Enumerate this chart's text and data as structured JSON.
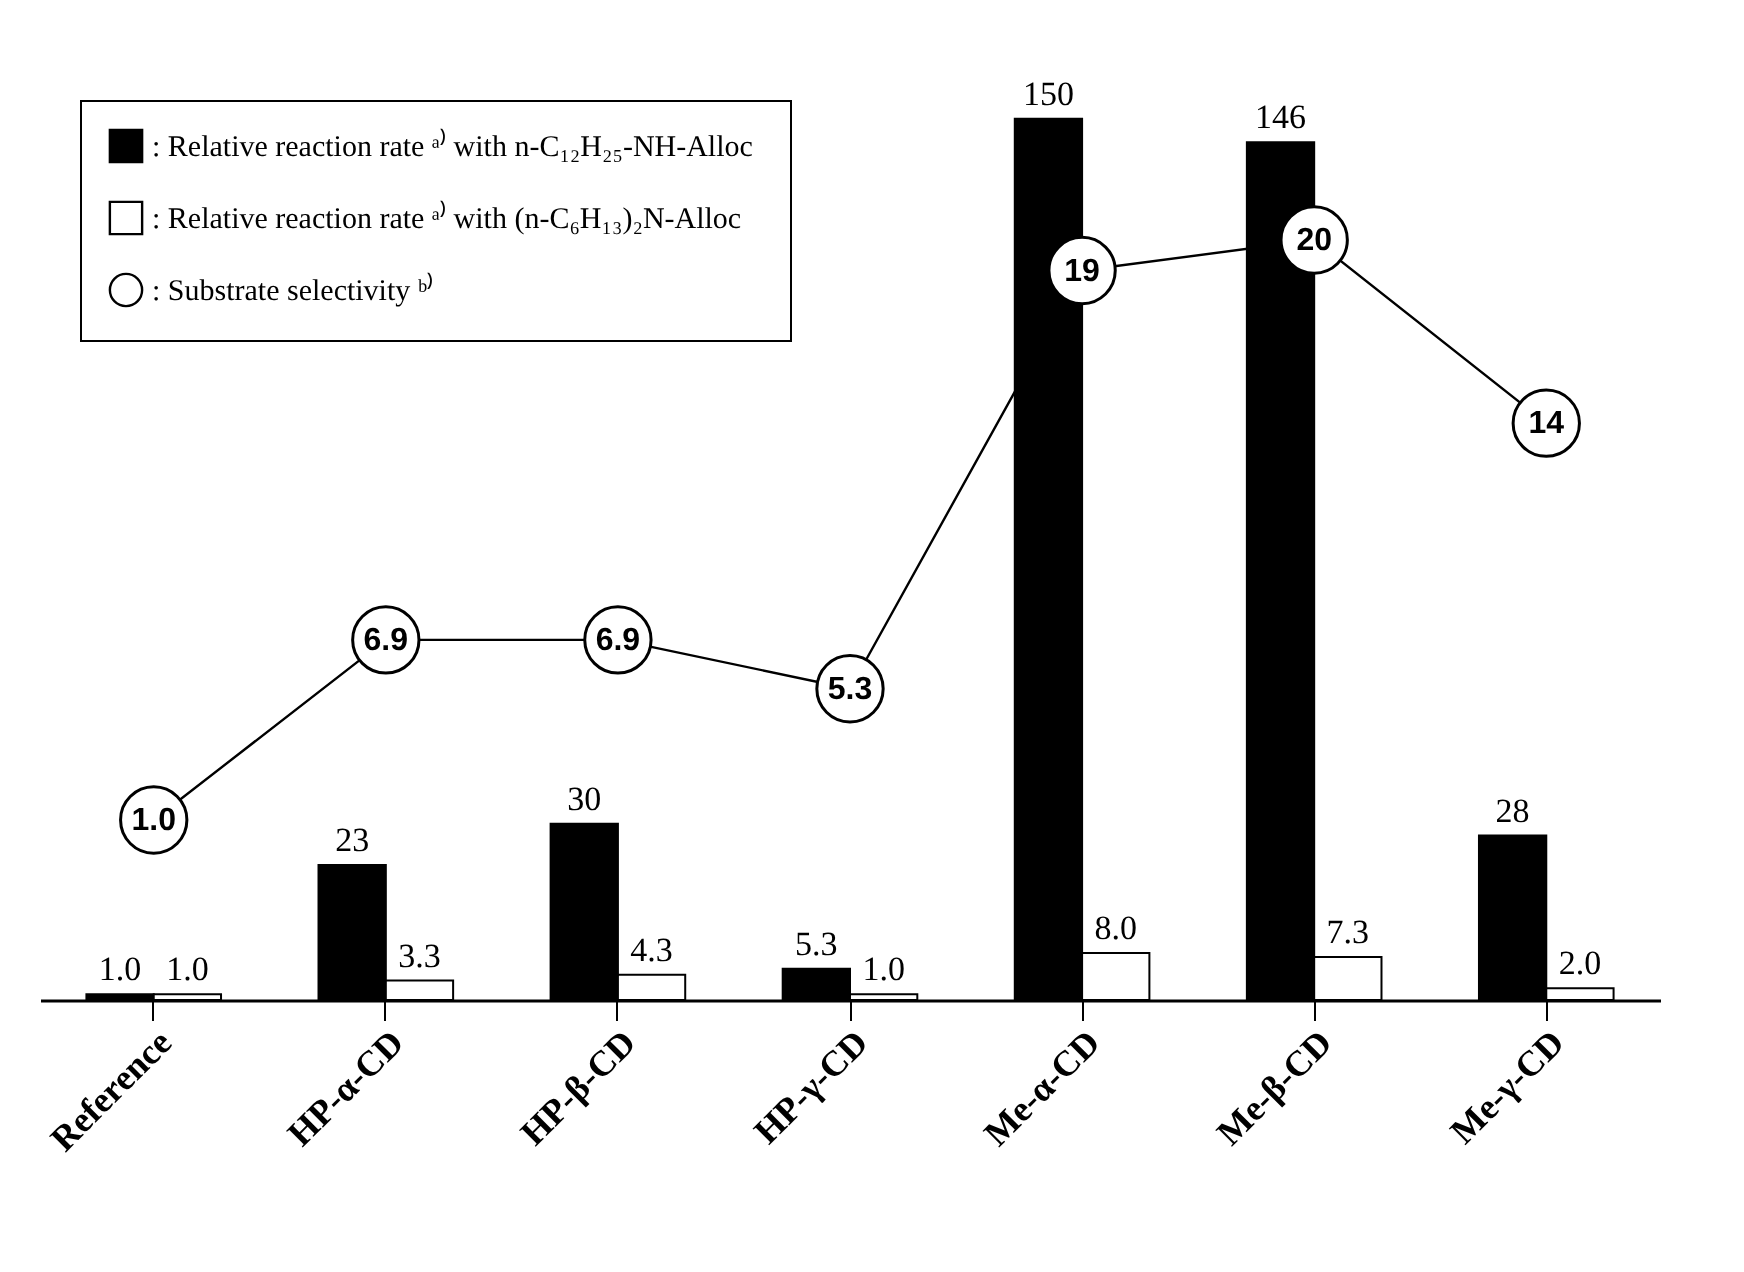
{
  "chart_data": {
    "type": "bar",
    "categories": [
      "Reference",
      "HP-α-CD",
      "HP-β-CD",
      "HP-γ-CD",
      "Me-α-CD",
      "Me-β-CD",
      "Me-γ-CD"
    ],
    "series": [
      {
        "name": ": Relative reaction rate ᵃ⁾ with  n-C₁₂H₂₅-NH-Alloc",
        "color": "#000000",
        "values": [
          1.0,
          23,
          30,
          5.3,
          150,
          146,
          28
        ],
        "value_labels": [
          "1.0",
          "23",
          "30",
          "5.3",
          "150",
          "146",
          "28"
        ]
      },
      {
        "name": ": Relative reaction rate ᵃ⁾ with  (n-C₆H₁₃)₂N-Alloc",
        "color": "#ffffff",
        "values": [
          1.0,
          3.3,
          4.3,
          1.0,
          8.0,
          7.3,
          2.0
        ],
        "value_labels": [
          "1.0",
          "3.3",
          "4.3",
          "1.0",
          "8.0",
          "7.3",
          "2.0"
        ]
      },
      {
        "name": ": Substrate selectivity ᵇ⁾",
        "type": "line",
        "axis": "y2",
        "color": "#000000",
        "values": [
          1.0,
          6.9,
          6.9,
          5.3,
          19,
          20,
          14
        ],
        "value_labels": [
          "1.0",
          "6.9",
          "6.9",
          "5.3",
          "19",
          "20",
          "14"
        ]
      }
    ],
    "marker": "circle",
    "legend": "top left",
    "tick_labels": "x",
    "grid": false
  }
}
